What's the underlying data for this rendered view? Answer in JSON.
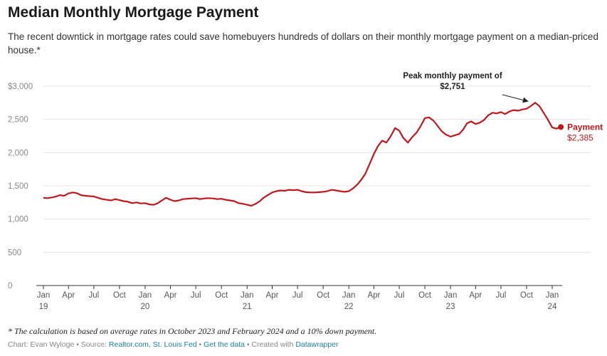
{
  "header": {
    "title": "Median Monthly Mortgage Payment",
    "subtitle": "The recent downtick in mortgage rates could save homebuyers hundreds of dollars on their monthly mortgage payment on a median-priced house.*"
  },
  "footer": {
    "footnote": "* The calculation is based on average rates in October 2023 and February 2024 and a 10% down payment.",
    "credit_prefix": "Chart: Evan Wyloge • Source: ",
    "source_link": "Realtor.com, St. Louis Fed",
    "sep1": " • ",
    "data_link": "Get the data",
    "sep2": " • Created with ",
    "tool_link": "Datawrapper"
  },
  "colors": {
    "line": "#c0171d",
    "grid": "#e4e4e4",
    "axis": "#333333",
    "tick_text": "#888888"
  },
  "chart_data": {
    "type": "line",
    "title": "Median Monthly Mortgage Payment",
    "xlabel": "",
    "ylabel": "",
    "ylim": [
      0,
      3000
    ],
    "xlim": [
      "2019-01-01",
      "2024-03-01"
    ],
    "grid": true,
    "y_ticks": [
      {
        "value": 0,
        "label": "0"
      },
      {
        "value": 500,
        "label": "500"
      },
      {
        "value": 1000,
        "label": "1,000"
      },
      {
        "value": 1500,
        "label": "1,500"
      },
      {
        "value": 2000,
        "label": "2,000"
      },
      {
        "value": 2500,
        "label": "2,500"
      },
      {
        "value": 3000,
        "label": "$3,000"
      }
    ],
    "x_ticks": [
      {
        "date": "2019-01-01",
        "label": "Jan",
        "year": "19"
      },
      {
        "date": "2019-04-01",
        "label": "Apr",
        "year": ""
      },
      {
        "date": "2019-07-01",
        "label": "Jul",
        "year": ""
      },
      {
        "date": "2019-10-01",
        "label": "Oct",
        "year": ""
      },
      {
        "date": "2020-01-01",
        "label": "Jan",
        "year": "20"
      },
      {
        "date": "2020-04-01",
        "label": "Apr",
        "year": ""
      },
      {
        "date": "2020-07-01",
        "label": "Jul",
        "year": ""
      },
      {
        "date": "2020-10-01",
        "label": "Oct",
        "year": ""
      },
      {
        "date": "2021-01-01",
        "label": "Jan",
        "year": "21"
      },
      {
        "date": "2021-04-01",
        "label": "Apr",
        "year": ""
      },
      {
        "date": "2021-07-01",
        "label": "Jul",
        "year": ""
      },
      {
        "date": "2021-10-01",
        "label": "Oct",
        "year": ""
      },
      {
        "date": "2022-01-01",
        "label": "Jan",
        "year": "22"
      },
      {
        "date": "2022-04-01",
        "label": "Apr",
        "year": ""
      },
      {
        "date": "2022-07-01",
        "label": "Jul",
        "year": ""
      },
      {
        "date": "2022-10-01",
        "label": "Oct",
        "year": ""
      },
      {
        "date": "2023-01-01",
        "label": "Jan",
        "year": "23"
      },
      {
        "date": "2023-04-01",
        "label": "Apr",
        "year": ""
      },
      {
        "date": "2023-07-01",
        "label": "Jul",
        "year": ""
      },
      {
        "date": "2023-10-01",
        "label": "Oct",
        "year": ""
      },
      {
        "date": "2024-01-01",
        "label": "Jan",
        "year": "24"
      }
    ],
    "series": [
      {
        "name": "Payment",
        "end_label": "$2,385",
        "x": [
          "2019-01-01",
          "2019-01-16",
          "2019-02-01",
          "2019-02-16",
          "2019-03-01",
          "2019-03-16",
          "2019-04-01",
          "2019-04-16",
          "2019-05-01",
          "2019-05-16",
          "2019-06-01",
          "2019-06-16",
          "2019-07-01",
          "2019-07-16",
          "2019-08-01",
          "2019-08-16",
          "2019-09-01",
          "2019-09-16",
          "2019-10-01",
          "2019-10-16",
          "2019-11-01",
          "2019-11-16",
          "2019-12-01",
          "2019-12-16",
          "2020-01-01",
          "2020-01-16",
          "2020-02-01",
          "2020-02-16",
          "2020-03-01",
          "2020-03-16",
          "2020-04-01",
          "2020-04-16",
          "2020-05-01",
          "2020-05-16",
          "2020-06-01",
          "2020-06-16",
          "2020-07-01",
          "2020-07-16",
          "2020-08-01",
          "2020-08-16",
          "2020-09-01",
          "2020-09-16",
          "2020-10-01",
          "2020-10-16",
          "2020-11-01",
          "2020-11-16",
          "2020-12-01",
          "2020-12-16",
          "2021-01-01",
          "2021-01-16",
          "2021-02-01",
          "2021-02-16",
          "2021-03-01",
          "2021-03-16",
          "2021-04-01",
          "2021-04-16",
          "2021-05-01",
          "2021-05-16",
          "2021-06-01",
          "2021-06-16",
          "2021-07-01",
          "2021-07-16",
          "2021-08-01",
          "2021-08-16",
          "2021-09-01",
          "2021-09-16",
          "2021-10-01",
          "2021-10-16",
          "2021-11-01",
          "2021-11-16",
          "2021-12-01",
          "2021-12-16",
          "2022-01-01",
          "2022-01-16",
          "2022-02-01",
          "2022-02-16",
          "2022-03-01",
          "2022-03-16",
          "2022-04-01",
          "2022-04-16",
          "2022-05-01",
          "2022-05-16",
          "2022-06-01",
          "2022-06-16",
          "2022-07-01",
          "2022-07-16",
          "2022-08-01",
          "2022-08-16",
          "2022-09-01",
          "2022-09-16",
          "2022-10-01",
          "2022-10-16",
          "2022-11-01",
          "2022-11-16",
          "2022-12-01",
          "2022-12-16",
          "2023-01-01",
          "2023-01-16",
          "2023-02-01",
          "2023-02-16",
          "2023-03-01",
          "2023-03-16",
          "2023-04-01",
          "2023-04-16",
          "2023-05-01",
          "2023-05-16",
          "2023-06-01",
          "2023-06-16",
          "2023-07-01",
          "2023-07-16",
          "2023-08-01",
          "2023-08-16",
          "2023-09-01",
          "2023-09-16",
          "2023-10-01",
          "2023-10-16",
          "2023-11-01",
          "2023-11-16",
          "2023-12-01",
          "2023-12-16",
          "2024-01-01",
          "2024-01-16",
          "2024-02-01"
        ],
        "values": [
          1320,
          1315,
          1325,
          1340,
          1360,
          1350,
          1385,
          1400,
          1390,
          1360,
          1350,
          1345,
          1340,
          1320,
          1300,
          1290,
          1280,
          1300,
          1285,
          1270,
          1260,
          1240,
          1250,
          1235,
          1240,
          1220,
          1215,
          1240,
          1280,
          1320,
          1290,
          1270,
          1280,
          1300,
          1305,
          1310,
          1315,
          1300,
          1310,
          1315,
          1310,
          1300,
          1305,
          1290,
          1280,
          1270,
          1240,
          1230,
          1215,
          1200,
          1230,
          1270,
          1320,
          1360,
          1400,
          1420,
          1430,
          1425,
          1440,
          1435,
          1440,
          1420,
          1405,
          1400,
          1400,
          1405,
          1410,
          1420,
          1440,
          1430,
          1420,
          1410,
          1420,
          1460,
          1520,
          1600,
          1680,
          1820,
          1980,
          2100,
          2180,
          2150,
          2250,
          2370,
          2330,
          2220,
          2150,
          2230,
          2300,
          2400,
          2520,
          2530,
          2480,
          2400,
          2320,
          2270,
          2240,
          2260,
          2280,
          2350,
          2440,
          2470,
          2430,
          2450,
          2490,
          2560,
          2600,
          2590,
          2610,
          2580,
          2620,
          2640,
          2630,
          2650,
          2660,
          2700,
          2751,
          2700,
          2600,
          2500,
          2380,
          2360,
          2385
        ]
      }
    ],
    "annotations": [
      {
        "text_line1": "Peak monthly payment of",
        "text_line2": "$2,751",
        "target_x": "2023-10-16",
        "target_y": 2751
      }
    ]
  }
}
